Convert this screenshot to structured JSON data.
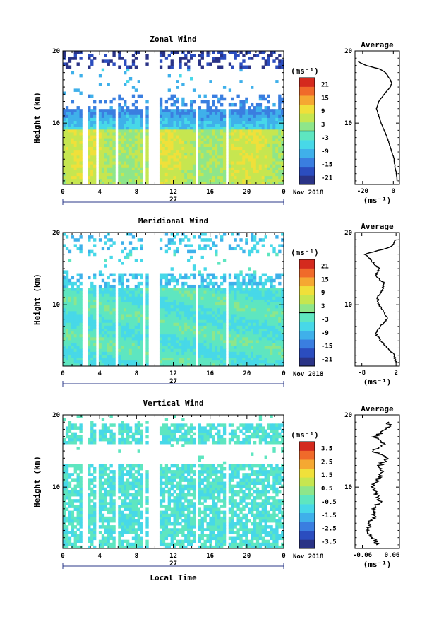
{
  "chart_data": [
    {
      "type": "heatmap",
      "title": "Zonal Wind",
      "ylabel": "Height (km)",
      "xlim": [
        0,
        24
      ],
      "ylim": [
        1.5,
        20
      ],
      "x_ticks": [
        "0",
        "4",
        "8",
        "12",
        "16",
        "20",
        "0"
      ],
      "y_ticks": [
        "10",
        "20"
      ],
      "day_label": "27",
      "date_label": "Nov 2018",
      "colorbar": {
        "unit": "(ms⁻¹)",
        "range": [
          -24,
          24
        ],
        "ticks": [
          "21",
          "15",
          "9",
          "3",
          "-3",
          "-9",
          "-15",
          "-21"
        ]
      },
      "data_gaps_hours": [
        [
          2.2,
          2.6
        ],
        [
          3.7,
          4.0
        ],
        [
          5.7,
          5.9
        ],
        [
          8.6,
          9.0
        ],
        [
          9.4,
          10.5
        ],
        [
          14.3,
          14.8
        ],
        [
          17.6,
          17.9
        ]
      ],
      "profile": {
        "title": "Average",
        "xlabel": "(ms⁻¹)",
        "xlim": [
          -25,
          4
        ],
        "x_ticks": [
          "-20",
          "0"
        ],
        "y_ticks": [
          "10",
          "20"
        ],
        "heights": [
          2,
          3,
          4,
          5,
          6,
          7,
          8,
          9,
          10,
          11,
          12,
          13,
          14,
          15,
          15.5,
          16,
          17,
          17.5,
          18,
          18.5
        ],
        "values": [
          2.5,
          2.0,
          1.0,
          0.5,
          -1.0,
          -2.5,
          -4.0,
          -6.0,
          -8.0,
          -9.5,
          -11.0,
          -9.5,
          -6.0,
          -2.0,
          -1.0,
          -2.0,
          -5.0,
          -9.0,
          -18.0,
          -23.0
        ]
      }
    },
    {
      "type": "heatmap",
      "title": "Meridional Wind",
      "ylabel": "Height (km)",
      "xlim": [
        0,
        24
      ],
      "ylim": [
        1.5,
        20
      ],
      "x_ticks": [
        "0",
        "4",
        "8",
        "12",
        "16",
        "20",
        "0"
      ],
      "y_ticks": [
        "10",
        "20"
      ],
      "day_label": "27",
      "date_label": "Nov 2018",
      "colorbar": {
        "unit": "(ms⁻¹)",
        "range": [
          -24,
          24
        ],
        "ticks": [
          "21",
          "15",
          "9",
          "3",
          "-3",
          "-9",
          "-15",
          "-21"
        ]
      },
      "data_gaps_hours": [
        [
          2.2,
          2.6
        ],
        [
          3.7,
          4.0
        ],
        [
          5.7,
          5.9
        ],
        [
          8.6,
          9.0
        ],
        [
          9.4,
          10.5
        ],
        [
          14.3,
          14.8
        ],
        [
          17.6,
          17.9
        ]
      ],
      "profile": {
        "title": "Average",
        "xlabel": "(ms⁻¹)",
        "xlim": [
          -10,
          3
        ],
        "x_ticks": [
          "-8",
          "2"
        ],
        "y_ticks": [
          "10",
          "20"
        ],
        "heights": [
          2,
          3,
          4,
          5,
          6,
          7,
          8,
          9,
          10,
          11,
          12,
          13,
          14,
          15,
          16,
          17,
          18,
          19
        ],
        "values": [
          2.0,
          1.5,
          -0.5,
          -2.5,
          -4.0,
          -2.5,
          -0.5,
          -1.5,
          -3.0,
          -3.5,
          -2.0,
          -1.5,
          -4.0,
          -3.0,
          -5.0,
          -7.0,
          0.5,
          2.0
        ]
      }
    },
    {
      "type": "heatmap",
      "title": "Vertical Wind",
      "xlabel": "Local Time",
      "ylabel": "Height (km)",
      "xlim": [
        0,
        24
      ],
      "ylim": [
        1.5,
        20
      ],
      "x_ticks": [
        "0",
        "4",
        "8",
        "12",
        "16",
        "20",
        "0"
      ],
      "y_ticks": [
        "10",
        "20"
      ],
      "day_label": "27",
      "date_label": "Nov 2018",
      "colorbar": {
        "unit": "(ms⁻¹)",
        "range": [
          -4,
          4
        ],
        "ticks": [
          "3.5",
          "2.5",
          "1.5",
          "0.5",
          "-0.5",
          "-1.5",
          "-2.5",
          "-3.5"
        ]
      },
      "data_gaps_hours": [
        [
          2.2,
          2.6
        ],
        [
          3.7,
          4.0
        ],
        [
          5.7,
          5.9
        ],
        [
          8.6,
          9.0
        ],
        [
          9.4,
          10.5
        ],
        [
          14.3,
          14.8
        ],
        [
          17.6,
          17.9
        ]
      ],
      "profile": {
        "title": "Average",
        "xlabel": "(ms⁻¹)",
        "xlim": [
          -0.09,
          0.09
        ],
        "x_ticks": [
          "-0.06",
          "0.06"
        ],
        "y_ticks": [
          "10",
          "20"
        ],
        "heights": [
          2,
          3,
          4,
          5,
          6,
          7,
          8,
          9,
          10,
          11,
          12,
          13,
          14,
          15,
          16,
          17,
          18,
          19
        ],
        "values": [
          0.0,
          -0.02,
          -0.04,
          -0.03,
          -0.01,
          -0.02,
          0.01,
          0.0,
          -0.02,
          0.0,
          0.02,
          0.01,
          0.04,
          -0.02,
          0.03,
          -0.01,
          0.04,
          0.05
        ]
      }
    }
  ],
  "colors": {
    "colormap": [
      "#2a3386",
      "#2b4dbf",
      "#3a7ee0",
      "#3fb0ea",
      "#47d8e8",
      "#5ee6c0",
      "#8ee68a",
      "#c6e650",
      "#f0e03a",
      "#f5a832",
      "#f06a2a",
      "#d42a1e"
    ]
  }
}
